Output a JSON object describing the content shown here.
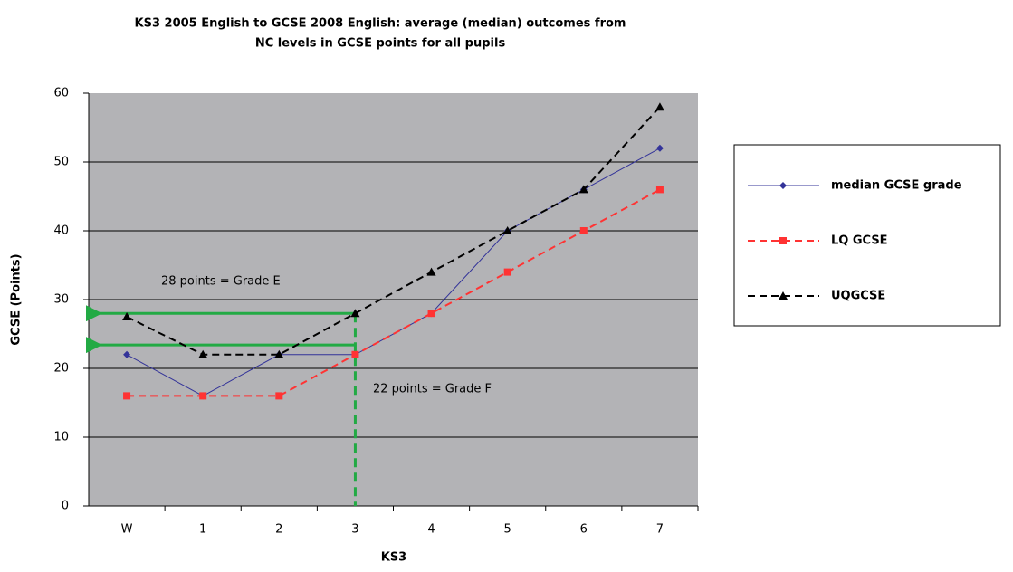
{
  "chart_data": {
    "type": "line",
    "title": [
      "KS3 2005 English to GCSE 2008 English: average (median) outcomes from",
      "NC levels in GCSE points for all pupils"
    ],
    "x_label": "KS3",
    "y_label": "GCSE (Points)",
    "categories": [
      "W",
      "1",
      "2",
      "3",
      "4",
      "5",
      "6",
      "7"
    ],
    "series": [
      {
        "name": "median GCSE grade",
        "color": "#333399",
        "marker": "diamond",
        "dashed": false,
        "values": [
          22,
          16,
          22,
          22,
          28,
          40,
          46,
          52
        ]
      },
      {
        "name": "LQ GCSE",
        "color": "#ff3333",
        "marker": "square",
        "dashed": true,
        "values": [
          16,
          16,
          16,
          22,
          28,
          34,
          40,
          46
        ]
      },
      {
        "name": "UQGCSE",
        "color": "#000000",
        "marker": "triangle",
        "dashed": true,
        "values": [
          27.5,
          22,
          22,
          28,
          34,
          40,
          46,
          58
        ]
      }
    ],
    "ylim": [
      0,
      60
    ],
    "yticks": [
      0,
      10,
      20,
      30,
      40,
      50,
      60
    ],
    "grid": true,
    "annotations": [
      "28 points = Grade E",
      "22 points = Grade F"
    ],
    "guides": {
      "color": "#22aa44",
      "x_index": 3,
      "y": [
        28,
        23.4
      ]
    }
  }
}
